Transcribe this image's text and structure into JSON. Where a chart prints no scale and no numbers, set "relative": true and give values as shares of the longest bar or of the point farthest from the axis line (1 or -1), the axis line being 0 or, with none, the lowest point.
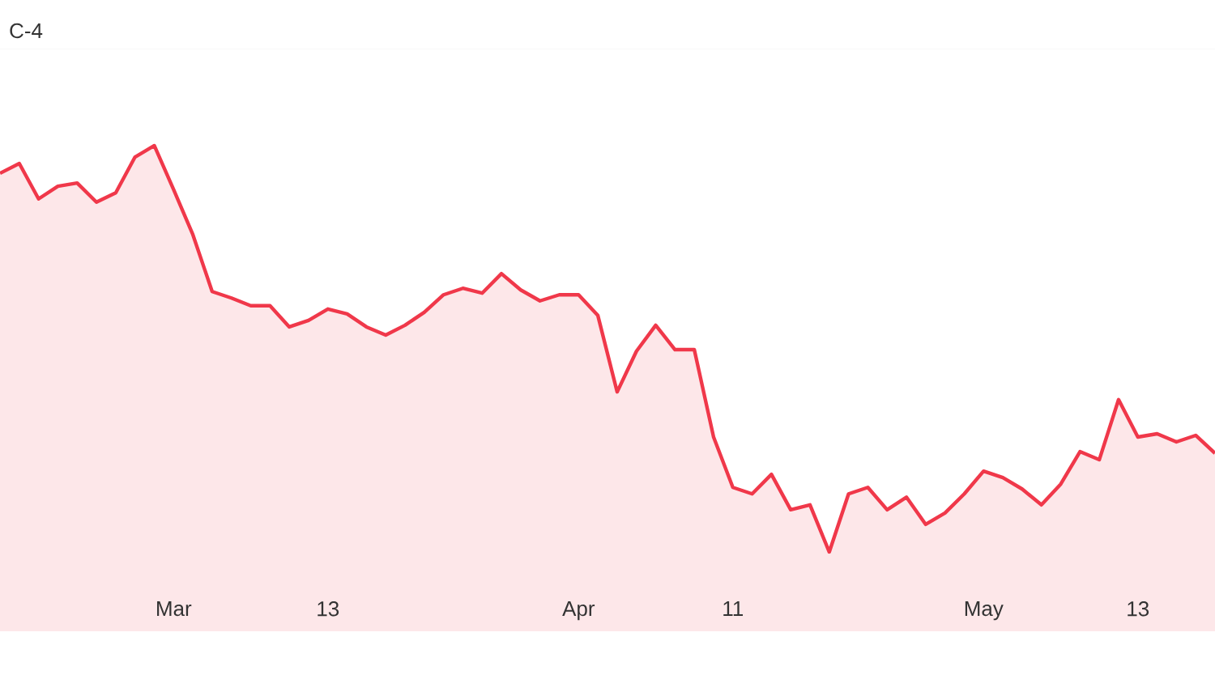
{
  "chart_data": {
    "type": "area",
    "title": "C-4",
    "relative": true,
    "categories": [
      null,
      null,
      null,
      null,
      null,
      null,
      null,
      null,
      null,
      "Mar",
      null,
      null,
      null,
      null,
      null,
      null,
      null,
      "13",
      null,
      null,
      null,
      null,
      null,
      null,
      null,
      null,
      null,
      null,
      null,
      null,
      "Apr",
      null,
      null,
      null,
      null,
      null,
      null,
      null,
      "11",
      null,
      null,
      null,
      null,
      null,
      null,
      null,
      null,
      null,
      null,
      null,
      null,
      "May",
      null,
      null,
      null,
      null,
      null,
      null,
      null,
      "13",
      null,
      null,
      null,
      null
    ],
    "series": [
      {
        "color": "#f0384a",
        "values": [
          0.932,
          0.956,
          0.869,
          0.9,
          0.908,
          0.861,
          0.884,
          0.972,
          1.0,
          0.892,
          0.781,
          0.641,
          0.625,
          0.606,
          0.606,
          0.554,
          0.57,
          0.598,
          0.586,
          0.554,
          0.534,
          0.558,
          0.59,
          0.633,
          0.649,
          0.637,
          0.685,
          0.645,
          0.618,
          0.633,
          0.633,
          0.582,
          0.394,
          0.494,
          0.558,
          0.498,
          0.498,
          0.283,
          0.159,
          0.143,
          0.191,
          0.104,
          0.116,
          0.0,
          0.143,
          0.159,
          0.104,
          0.135,
          0.068,
          0.096,
          0.143,
          0.199,
          0.183,
          0.155,
          0.116,
          0.167,
          0.247,
          0.227,
          0.375,
          0.283,
          0.291,
          0.271,
          0.287,
          0.243
        ]
      }
    ]
  }
}
